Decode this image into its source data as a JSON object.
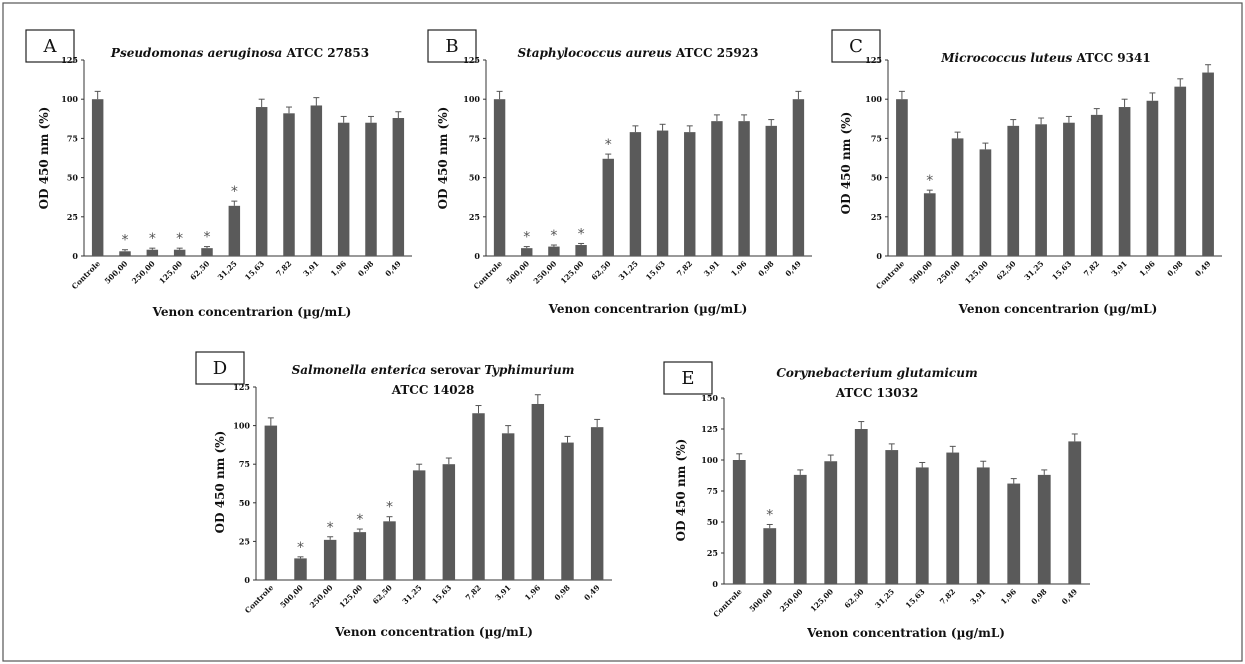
{
  "colors": {
    "bar": "#5a5a5a",
    "axis": "#333333",
    "text": "#111111"
  },
  "chart_data": [
    {
      "id": "A",
      "type": "bar",
      "letter": "A",
      "title": [
        {
          "text": "Pseudomonas aeruginosa",
          "italic": true
        },
        {
          "text": " ATCC 27853",
          "italic": false
        }
      ],
      "title2": "",
      "ylabel": "OD 450 nm (%)",
      "xlabel": "Venon concentrarion (µg/mL)",
      "ylim": [
        0,
        125
      ],
      "yticks": [
        "0",
        "25",
        "50",
        "75",
        "100",
        "125"
      ],
      "categories": [
        "Controle",
        "500,00",
        "250,00",
        "125,00",
        "62,50",
        "31,25",
        "15,63",
        "7,82",
        "3,91",
        "1,96",
        "0,98",
        "0,49"
      ],
      "values": [
        100,
        3,
        4,
        4,
        5,
        32,
        95,
        91,
        96,
        85,
        85,
        88
      ],
      "errors": [
        5,
        1,
        1,
        1,
        1,
        3,
        5,
        4,
        5,
        4,
        4,
        4
      ],
      "significant": [
        false,
        true,
        true,
        true,
        true,
        true,
        false,
        false,
        false,
        false,
        false,
        false
      ],
      "marker": "*"
    },
    {
      "id": "B",
      "type": "bar",
      "letter": "B",
      "title": [
        {
          "text": "Staphylococcus aureus",
          "italic": true
        },
        {
          "text": " ATCC 25923",
          "italic": false
        }
      ],
      "title2": "",
      "ylabel": "OD 450 nm (%)",
      "xlabel": "Venon concentrarion (µg/mL)",
      "ylim": [
        0,
        125
      ],
      "yticks": [
        "0",
        "25",
        "50",
        "75",
        "100",
        "125"
      ],
      "categories": [
        "Controle",
        "500,00",
        "250,00",
        "125,00",
        "62,50",
        "31,25",
        "15,63",
        "7,82",
        "3,91",
        "1,96",
        "0,98",
        "0,49"
      ],
      "values": [
        100,
        5,
        6,
        7,
        62,
        79,
        80,
        79,
        86,
        86,
        83,
        100
      ],
      "errors": [
        5,
        1,
        1,
        1,
        3,
        4,
        4,
        4,
        4,
        4,
        4,
        5
      ],
      "significant": [
        false,
        true,
        true,
        true,
        true,
        false,
        false,
        false,
        false,
        false,
        false,
        false
      ],
      "marker": "*"
    },
    {
      "id": "C",
      "type": "bar",
      "letter": "C",
      "title": [
        {
          "text": "Micrococcus luteus",
          "italic": true
        },
        {
          "text": " ATCC 9341",
          "italic": false
        }
      ],
      "title2": "",
      "ylabel": "OD 450 nm (%)",
      "xlabel": "Venon concentrarion (µg/mL)",
      "ylim": [
        0,
        125
      ],
      "yticks": [
        "0",
        "25",
        "50",
        "75",
        "100",
        "125"
      ],
      "categories": [
        "Controle",
        "500,00",
        "250,00",
        "125,00",
        "62,50",
        "31,25",
        "15,63",
        "7,82",
        "3,91",
        "1,96",
        "0,98",
        "0,49"
      ],
      "values": [
        100,
        40,
        75,
        68,
        83,
        84,
        85,
        90,
        95,
        99,
        108,
        117
      ],
      "errors": [
        5,
        2,
        4,
        4,
        4,
        4,
        4,
        4,
        5,
        5,
        5,
        5
      ],
      "significant": [
        false,
        true,
        false,
        false,
        false,
        false,
        false,
        false,
        false,
        false,
        false,
        false
      ],
      "marker": "*"
    },
    {
      "id": "D",
      "type": "bar",
      "letter": "D",
      "title": [
        {
          "text": "Salmonella enterica",
          "italic": true
        },
        {
          "text": " serovar ",
          "italic": false
        },
        {
          "text": "Typhimurium",
          "italic": true
        }
      ],
      "title2": "ATCC 14028",
      "ylabel": "OD 450 nm (%)",
      "xlabel": "Venon concentration (µg/mL)",
      "ylim": [
        0,
        125
      ],
      "yticks": [
        "0",
        "25",
        "50",
        "75",
        "100",
        "125"
      ],
      "categories": [
        "Controle",
        "500,00",
        "250,00",
        "125,00",
        "62,50",
        "31,25",
        "15,63",
        "7,82",
        "3,91",
        "1,96",
        "0,98",
        "0,49"
      ],
      "values": [
        100,
        14,
        26,
        31,
        38,
        71,
        75,
        108,
        95,
        114,
        89,
        99
      ],
      "errors": [
        5,
        1,
        2,
        2,
        3,
        4,
        4,
        5,
        5,
        6,
        4,
        5
      ],
      "significant": [
        false,
        true,
        true,
        true,
        true,
        false,
        false,
        false,
        false,
        false,
        false,
        false
      ],
      "marker": "*"
    },
    {
      "id": "E",
      "type": "bar",
      "letter": "E",
      "title": [
        {
          "text": "Corynebacterium glutamicum",
          "italic": true
        }
      ],
      "title2": "ATCC 13032",
      "ylabel": "OD 450 nm (%)",
      "xlabel": "Venon concentration (µg/mL)",
      "ylim": [
        0,
        150
      ],
      "yticks": [
        "0",
        "25",
        "50",
        "75",
        "100",
        "125",
        "150"
      ],
      "categories": [
        "Controle",
        "500,00",
        "250,00",
        "125,00",
        "62,50",
        "31,25",
        "15,63",
        "7,82",
        "3,91",
        "1,96",
        "0,98",
        "0,49"
      ],
      "values": [
        100,
        45,
        88,
        99,
        125,
        108,
        94,
        106,
        94,
        81,
        88,
        115
      ],
      "errors": [
        5,
        3,
        4,
        5,
        6,
        5,
        4,
        5,
        5,
        4,
        4,
        6
      ],
      "significant": [
        false,
        true,
        false,
        false,
        false,
        false,
        false,
        false,
        false,
        false,
        false,
        false
      ],
      "marker": "*"
    }
  ]
}
